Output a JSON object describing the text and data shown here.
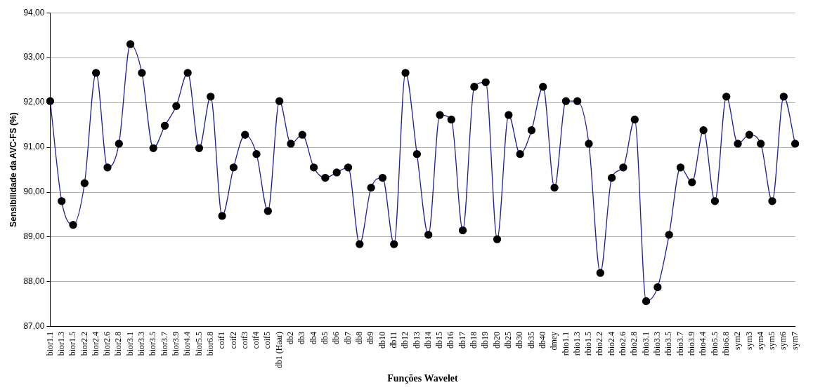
{
  "chart_data": {
    "type": "line",
    "xlabel": "Funções Wavelet",
    "ylabel": "Sensibilidade da AVC-FS (%)",
    "categories": [
      "bior1.1",
      "bior1.3",
      "bior1.5",
      "bior2.2",
      "bior2.4",
      "bior2.6",
      "bior2.8",
      "bior3.1",
      "bior3.3",
      "bior3.5",
      "bior3.7",
      "bior3.9",
      "bior4.4",
      "bior5.5",
      "bior6.8",
      "coif1",
      "coif2",
      "coif3",
      "coif4",
      "coif5",
      "db1 (Haar)",
      "db2",
      "db3",
      "db4",
      "db5",
      "db6",
      "db7",
      "db8",
      "db9",
      "db10",
      "db11",
      "db12",
      "db13",
      "db14",
      "db15",
      "db16",
      "db17",
      "db18",
      "db19",
      "db20",
      "db25",
      "db30",
      "db35",
      "db40",
      "dmey",
      "rbio1.1",
      "rbio1.3",
      "rbio1.5",
      "rbio2.2",
      "rbio2.4",
      "rbio2.6",
      "rbio2.8",
      "rbio3.1",
      "rbio3.3",
      "rbio3.5",
      "rbio3.7",
      "rbio3.9",
      "rbio4.4",
      "rbio5.5",
      "rbio6.8",
      "sym2",
      "sym3",
      "sym4",
      "sym5",
      "sym6",
      "sym7"
    ],
    "series": [
      {
        "color": "#1f1f9c",
        "values": [
          92.03,
          89.8,
          89.27,
          90.2,
          92.66,
          90.55,
          91.08,
          93.3,
          92.66,
          90.98,
          91.48,
          91.92,
          92.66,
          90.98,
          92.13,
          89.47,
          90.55,
          91.28,
          90.85,
          89.58,
          92.03,
          91.08,
          91.28,
          90.55,
          90.32,
          90.44,
          90.55,
          88.84,
          90.1,
          90.32,
          88.84,
          92.66,
          90.85,
          89.05,
          91.72,
          91.62,
          89.15,
          92.35,
          92.45,
          88.95,
          91.72,
          90.85,
          91.38,
          92.35,
          90.1,
          92.03,
          92.03,
          91.08,
          88.2,
          90.32,
          90.55,
          91.62,
          87.57,
          87.88,
          89.05,
          90.55,
          90.22,
          91.38,
          89.8,
          92.13,
          91.08,
          91.28,
          91.08,
          89.8,
          92.13,
          91.08
        ]
      }
    ],
    "ylim": [
      87,
      94
    ],
    "yticks": [
      {
        "value": 87,
        "label": "87,00"
      },
      {
        "value": 88,
        "label": "88,00"
      },
      {
        "value": 89,
        "label": "89,00"
      },
      {
        "value": 90,
        "label": "90,00"
      },
      {
        "value": 91,
        "label": "91,00"
      },
      {
        "value": 92,
        "label": "92,00"
      },
      {
        "value": 93,
        "label": "93,00"
      },
      {
        "value": 94,
        "label": "94,00"
      }
    ],
    "grid": "y",
    "legend": false,
    "marker": "circle",
    "line_style": "solid"
  }
}
